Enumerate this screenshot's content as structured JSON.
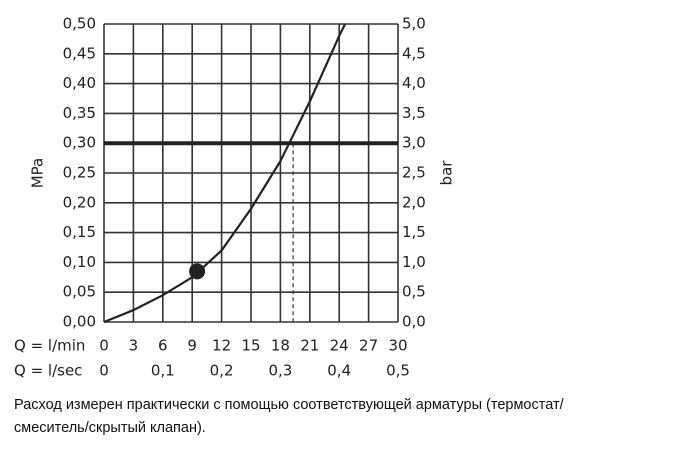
{
  "chart_data": {
    "type": "line",
    "y_label": "MPa",
    "y2_label": "bar",
    "x_label": "Q = l/min",
    "x2_label": "Q = l/sec",
    "x": [
      0,
      3,
      6,
      9,
      12,
      15,
      18,
      21,
      24,
      24.6
    ],
    "series": [
      {
        "color": "#222222",
        "values": [
          0,
          0.02,
          0.045,
          0.075,
          0.12,
          0.19,
          0.27,
          0.37,
          0.48,
          0.5
        ]
      }
    ],
    "marker": {
      "x": 9.5,
      "y": 0.085
    },
    "reference_y": 0.3,
    "reference_x": 19.3,
    "xlim": [
      0,
      30
    ],
    "xticks": [
      0,
      3,
      6,
      9,
      12,
      15,
      18,
      21,
      24,
      27,
      30
    ],
    "x2lim": [
      0,
      0.5
    ],
    "x2ticks": [
      0,
      {
        "value": 0.1,
        "label": "0,1"
      },
      {
        "value": 0.2,
        "label": "0,2"
      },
      {
        "value": 0.3,
        "label": "0,3"
      },
      {
        "value": 0.4,
        "label": "0,4"
      },
      {
        "value": 0.5,
        "label": "0,5"
      }
    ],
    "ylim": [
      0,
      0.5
    ],
    "yticks": [
      {
        "value": 0,
        "label": "0,00"
      },
      {
        "value": 0.05,
        "label": "0,05"
      },
      {
        "value": 0.1,
        "label": "0,10"
      },
      {
        "value": 0.15,
        "label": "0,15"
      },
      {
        "value": 0.2,
        "label": "0,20"
      },
      {
        "value": 0.25,
        "label": "0,25"
      },
      {
        "value": 0.3,
        "label": "0,30"
      },
      {
        "value": 0.35,
        "label": "0,35"
      },
      {
        "value": 0.4,
        "label": "0,40"
      },
      {
        "value": 0.45,
        "label": "0,45"
      },
      {
        "value": 0.5,
        "label": "0,50"
      }
    ],
    "y2lim": [
      0,
      5
    ],
    "y2ticks": [
      {
        "value": 0,
        "label": "0,0"
      },
      {
        "value": 0.5,
        "label": "0,5"
      },
      {
        "value": 1,
        "label": "1,0"
      },
      {
        "value": 1.5,
        "label": "1,5"
      },
      {
        "value": 2,
        "label": "2,0"
      },
      {
        "value": 2.5,
        "label": "2,5"
      },
      {
        "value": 3,
        "label": "3,0"
      },
      {
        "value": 3.5,
        "label": "3,5"
      },
      {
        "value": 4,
        "label": "4,0"
      },
      {
        "value": 4.5,
        "label": "4,5"
      },
      {
        "value": 5,
        "label": "5,0"
      }
    ],
    "grid": true
  },
  "caption": [
    "Расход измерен практически с помощью соответствующей арматуры (термостат/",
    "смеситель/скрытый клапан)."
  ]
}
